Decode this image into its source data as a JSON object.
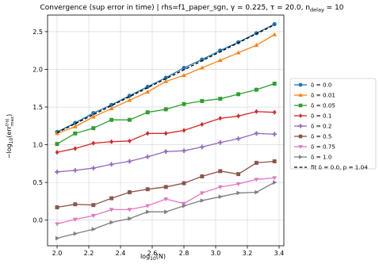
{
  "chart_data": {
    "type": "line",
    "title": "Convergence (sup error in time) | rhs=f1_paper_sgn, γ = 0.225, τ = 20.0, n",
    "title_sub": "delay",
    "title_tail": " = 10",
    "xlabel_main": "log",
    "xlabel_sub": "10",
    "xlabel_tail": "(N)",
    "ylabel": "−log10(err_max^traj)",
    "ylabel_main": "−log",
    "ylabel_sub": "10",
    "ylabel_tail": "(err",
    "ylabel_sup": "traj",
    "ylabel_sub2": "max",
    "ylabel_close": ")",
    "xlim": [
      1.94,
      3.43
    ],
    "ylim": [
      -0.34,
      2.72
    ],
    "xticks": [
      2.0,
      2.2,
      2.4,
      2.6,
      2.8,
      3.0,
      3.2,
      3.4
    ],
    "xtick_labels": [
      "2.0",
      "2.2",
      "2.4",
      "2.6",
      "2.8",
      "3.0",
      "3.2",
      "3.4"
    ],
    "yticks": [
      0.0,
      0.5,
      1.0,
      1.5,
      2.0,
      2.5
    ],
    "ytick_labels": [
      "0.0",
      "0.5",
      "1.0",
      "1.5",
      "2.0",
      "2.5"
    ],
    "grid": true,
    "legend_position": "outside-right",
    "x": [
      2.0,
      2.114,
      2.229,
      2.343,
      2.457,
      2.571,
      2.686,
      2.8,
      2.914,
      3.029,
      3.143,
      3.257,
      3.371
    ],
    "series": [
      {
        "name": "δ = 0.0",
        "color": "#1f77b4",
        "marker": "circle",
        "values": [
          1.17,
          1.29,
          1.42,
          1.53,
          1.65,
          1.77,
          1.89,
          2.02,
          2.13,
          2.25,
          2.36,
          2.48,
          2.6
        ]
      },
      {
        "name": "δ = 0.01",
        "color": "#ff7f0e",
        "marker": "triangle-up",
        "values": [
          1.15,
          1.24,
          1.37,
          1.48,
          1.59,
          1.7,
          1.84,
          1.92,
          2.02,
          2.12,
          2.22,
          2.32,
          2.46
        ]
      },
      {
        "name": "δ = 0.05",
        "color": "#2ca02c",
        "marker": "square",
        "values": [
          1.01,
          1.15,
          1.22,
          1.33,
          1.33,
          1.43,
          1.47,
          1.54,
          1.58,
          1.61,
          1.67,
          1.73,
          1.81
        ]
      },
      {
        "name": "δ = 0.1",
        "color": "#d62728",
        "marker": "diamond",
        "values": [
          0.9,
          0.95,
          1.02,
          1.04,
          1.05,
          1.15,
          1.15,
          1.19,
          1.27,
          1.35,
          1.38,
          1.44,
          1.43
        ]
      },
      {
        "name": "δ = 0.2",
        "color": "#9467bd",
        "marker": "plus",
        "values": [
          0.64,
          0.66,
          0.69,
          0.74,
          0.78,
          0.84,
          0.91,
          0.92,
          0.97,
          1.03,
          1.08,
          1.15,
          1.14
        ]
      },
      {
        "name": "δ = 0.5",
        "color": "#8c564b",
        "marker": "square",
        "values": [
          0.17,
          0.21,
          0.2,
          0.29,
          0.37,
          0.41,
          0.44,
          0.49,
          0.58,
          0.65,
          0.61,
          0.76,
          0.78
        ]
      },
      {
        "name": "δ = 0.75",
        "color": "#e377c2",
        "marker": "triangle-down",
        "values": [
          -0.05,
          0.01,
          0.06,
          0.14,
          0.14,
          0.19,
          0.28,
          0.22,
          0.36,
          0.44,
          0.48,
          0.54,
          0.56
        ]
      },
      {
        "name": "δ = 1.0",
        "color": "#7f7f7f",
        "marker": "triangle-right",
        "values": [
          -0.24,
          -0.18,
          -0.12,
          -0.03,
          0.02,
          0.11,
          0.11,
          0.19,
          0.26,
          0.31,
          0.36,
          0.37,
          0.5
        ]
      }
    ],
    "fit": {
      "name": "fit δ = 0.0, p = 1.04",
      "color": "#000000",
      "x": [
        2.0,
        3.371
      ],
      "values": [
        1.16,
        2.59
      ]
    }
  }
}
